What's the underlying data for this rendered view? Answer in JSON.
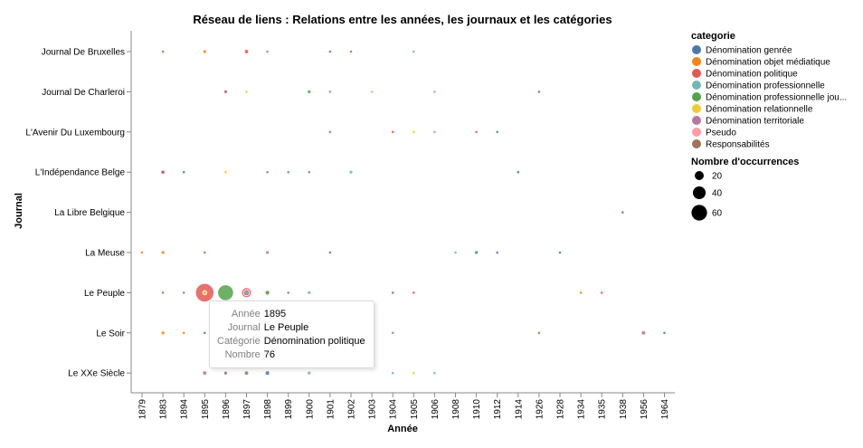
{
  "chart_data": {
    "type": "scatter",
    "title": "Réseau de liens : Relations entre les années, les journaux et les catégories",
    "xlabel": "Année",
    "ylabel": "Journal",
    "x_categories": [
      "1879",
      "1883",
      "1894",
      "1895",
      "1896",
      "1897",
      "1898",
      "1899",
      "1900",
      "1901",
      "1902",
      "1903",
      "1904",
      "1905",
      "1906",
      "1908",
      "1910",
      "1912",
      "1914",
      "1926",
      "1928",
      "1934",
      "1935",
      "1938",
      "1956",
      "1964"
    ],
    "y_categories": [
      "Journal De Bruxelles",
      "Journal De Charleroi",
      "L'Avenir Du Luxembourg",
      "L'Indépendance Belge",
      "La Libre Belgique",
      "La Meuse",
      "Le Peuple",
      "Le Soir",
      "Le XXe Siècle"
    ],
    "legend_color_title": "categorie",
    "legend_size_title": "Nombre d'occurrences",
    "categories": [
      {
        "name": "Dénomination genrée",
        "color": "#4c78a8"
      },
      {
        "name": "Dénomination objet médiatique",
        "color": "#f58518"
      },
      {
        "name": "Dénomination politique",
        "color": "#e45756"
      },
      {
        "name": "Dénomination professionnelle",
        "color": "#72b7b2"
      },
      {
        "name": "Dénomination professionnelle jou...",
        "color": "#54a24b"
      },
      {
        "name": "Dénomination relationnelle",
        "color": "#eeca3b"
      },
      {
        "name": "Dénomination territoriale",
        "color": "#b279a2"
      },
      {
        "name": "Pseudo",
        "color": "#ff9da6"
      },
      {
        "name": "Responsabilités",
        "color": "#9d755d"
      }
    ],
    "size_legend": [
      20,
      40,
      60
    ],
    "points": [
      {
        "journal": "Journal De Bruxelles",
        "year": "1883",
        "cat": 8,
        "n": 1
      },
      {
        "journal": "Journal De Bruxelles",
        "year": "1895",
        "cat": 1,
        "n": 2
      },
      {
        "journal": "Journal De Bruxelles",
        "year": "1897",
        "cat": 2,
        "n": 4
      },
      {
        "journal": "Journal De Bruxelles",
        "year": "1898",
        "cat": 6,
        "n": 1
      },
      {
        "journal": "Journal De Bruxelles",
        "year": "1901",
        "cat": 0,
        "n": 1
      },
      {
        "journal": "Journal De Bruxelles",
        "year": "1902",
        "cat": 8,
        "n": 1
      },
      {
        "journal": "Journal De Bruxelles",
        "year": "1905",
        "cat": 3,
        "n": 1
      },
      {
        "journal": "Journal De Charleroi",
        "year": "1896",
        "cat": 2,
        "n": 2
      },
      {
        "journal": "Journal De Charleroi",
        "year": "1896",
        "cat": 6,
        "n": 1
      },
      {
        "journal": "Journal De Charleroi",
        "year": "1897",
        "cat": 5,
        "n": 1
      },
      {
        "journal": "Journal De Charleroi",
        "year": "1900",
        "cat": 4,
        "n": 2
      },
      {
        "journal": "Journal De Charleroi",
        "year": "1901",
        "cat": 6,
        "n": 1
      },
      {
        "journal": "Journal De Charleroi",
        "year": "1903",
        "cat": 7,
        "n": 1
      },
      {
        "journal": "Journal De Charleroi",
        "year": "1906",
        "cat": 3,
        "n": 1
      },
      {
        "journal": "Journal De Charleroi",
        "year": "1926",
        "cat": 0,
        "n": 1
      },
      {
        "journal": "L'Avenir Du Luxembourg",
        "year": "1901",
        "cat": 4,
        "n": 1
      },
      {
        "journal": "L'Avenir Du Luxembourg",
        "year": "1904",
        "cat": 2,
        "n": 1
      },
      {
        "journal": "L'Avenir Du Luxembourg",
        "year": "1905",
        "cat": 5,
        "n": 1
      },
      {
        "journal": "L'Avenir Du Luxembourg",
        "year": "1906",
        "cat": 3,
        "n": 1
      },
      {
        "journal": "L'Avenir Du Luxembourg",
        "year": "1910",
        "cat": 2,
        "n": 1
      },
      {
        "journal": "L'Avenir Du Luxembourg",
        "year": "1912",
        "cat": 0,
        "n": 1
      },
      {
        "journal": "L'Indépendance Belge",
        "year": "1883",
        "cat": 6,
        "n": 4
      },
      {
        "journal": "L'Indépendance Belge",
        "year": "1883",
        "cat": 2,
        "n": 1
      },
      {
        "journal": "L'Indépendance Belge",
        "year": "1894",
        "cat": 0,
        "n": 1
      },
      {
        "journal": "L'Indépendance Belge",
        "year": "1896",
        "cat": 5,
        "n": 1
      },
      {
        "journal": "L'Indépendance Belge",
        "year": "1898",
        "cat": 4,
        "n": 1
      },
      {
        "journal": "L'Indépendance Belge",
        "year": "1899",
        "cat": 4,
        "n": 1
      },
      {
        "journal": "L'Indépendance Belge",
        "year": "1900",
        "cat": 8,
        "n": 1
      },
      {
        "journal": "L'Indépendance Belge",
        "year": "1902",
        "cat": 3,
        "n": 2
      },
      {
        "journal": "L'Indépendance Belge",
        "year": "1914",
        "cat": 0,
        "n": 1
      },
      {
        "journal": "La Libre Belgique",
        "year": "1938",
        "cat": 0,
        "n": 1
      },
      {
        "journal": "La Meuse",
        "year": "1879",
        "cat": 1,
        "n": 1
      },
      {
        "journal": "La Meuse",
        "year": "1883",
        "cat": 1,
        "n": 2
      },
      {
        "journal": "La Meuse",
        "year": "1895",
        "cat": 8,
        "n": 1
      },
      {
        "journal": "La Meuse",
        "year": "1898",
        "cat": 6,
        "n": 2
      },
      {
        "journal": "La Meuse",
        "year": "1901",
        "cat": 0,
        "n": 1
      },
      {
        "journal": "La Meuse",
        "year": "1908",
        "cat": 3,
        "n": 1
      },
      {
        "journal": "La Meuse",
        "year": "1910",
        "cat": 0,
        "n": 2
      },
      {
        "journal": "La Meuse",
        "year": "1912",
        "cat": 0,
        "n": 1
      },
      {
        "journal": "La Meuse",
        "year": "1928",
        "cat": 0,
        "n": 1
      },
      {
        "journal": "Le Peuple",
        "year": "1883",
        "cat": 8,
        "n": 1
      },
      {
        "journal": "Le Peuple",
        "year": "1894",
        "cat": 8,
        "n": 1
      },
      {
        "journal": "Le Peuple",
        "year": "1895",
        "cat": 2,
        "n": 76
      },
      {
        "journal": "Le Peuple",
        "year": "1895",
        "cat": 5,
        "n": 4
      },
      {
        "journal": "Le Peuple",
        "year": "1896",
        "cat": 4,
        "n": 55
      },
      {
        "journal": "Le Peuple",
        "year": "1897",
        "cat": 2,
        "n": 22
      },
      {
        "journal": "Le Peuple",
        "year": "1897",
        "cat": 6,
        "n": 8
      },
      {
        "journal": "Le Peuple",
        "year": "1897",
        "cat": 3,
        "n": 2
      },
      {
        "journal": "Le Peuple",
        "year": "1898",
        "cat": 8,
        "n": 8
      },
      {
        "journal": "Le Peuple",
        "year": "1898",
        "cat": 4,
        "n": 4
      },
      {
        "journal": "Le Peuple",
        "year": "1899",
        "cat": 8,
        "n": 1
      },
      {
        "journal": "Le Peuple",
        "year": "1900",
        "cat": 3,
        "n": 2
      },
      {
        "journal": "Le Peuple",
        "year": "1904",
        "cat": 0,
        "n": 1
      },
      {
        "journal": "Le Peuple",
        "year": "1905",
        "cat": 2,
        "n": 1
      },
      {
        "journal": "Le Peuple",
        "year": "1934",
        "cat": 1,
        "n": 1
      },
      {
        "journal": "Le Peuple",
        "year": "1935",
        "cat": 2,
        "n": 1
      },
      {
        "journal": "Le Soir",
        "year": "1883",
        "cat": 1,
        "n": 2
      },
      {
        "journal": "Le Soir",
        "year": "1894",
        "cat": 1,
        "n": 1
      },
      {
        "journal": "Le Soir",
        "year": "1895",
        "cat": 0,
        "n": 1
      },
      {
        "journal": "Le Soir",
        "year": "1904",
        "cat": 6,
        "n": 1
      },
      {
        "journal": "Le Soir",
        "year": "1926",
        "cat": 8,
        "n": 1
      },
      {
        "journal": "Le Soir",
        "year": "1956",
        "cat": 6,
        "n": 3
      },
      {
        "journal": "Le Soir",
        "year": "1964",
        "cat": 0,
        "n": 1
      },
      {
        "journal": "Le XXe Siècle",
        "year": "1895",
        "cat": 6,
        "n": 3
      },
      {
        "journal": "Le XXe Siècle",
        "year": "1896",
        "cat": 8,
        "n": 2
      },
      {
        "journal": "Le XXe Siècle",
        "year": "1897",
        "cat": 8,
        "n": 4
      },
      {
        "journal": "Le XXe Siècle",
        "year": "1898",
        "cat": 0,
        "n": 3
      },
      {
        "journal": "Le XXe Siècle",
        "year": "1900",
        "cat": 3,
        "n": 2
      },
      {
        "journal": "Le XXe Siècle",
        "year": "1904",
        "cat": 3,
        "n": 1
      },
      {
        "journal": "Le XXe Siècle",
        "year": "1905",
        "cat": 5,
        "n": 1
      },
      {
        "journal": "Le XXe Siècle",
        "year": "1906",
        "cat": 3,
        "n": 1
      }
    ]
  },
  "tooltip": {
    "rows": [
      {
        "key": "Année",
        "value": "1895"
      },
      {
        "key": "Journal",
        "value": "Le Peuple"
      },
      {
        "key": "Catégorie",
        "value": "Dénomination politique"
      },
      {
        "key": "Nombre",
        "value": "76"
      }
    ]
  }
}
